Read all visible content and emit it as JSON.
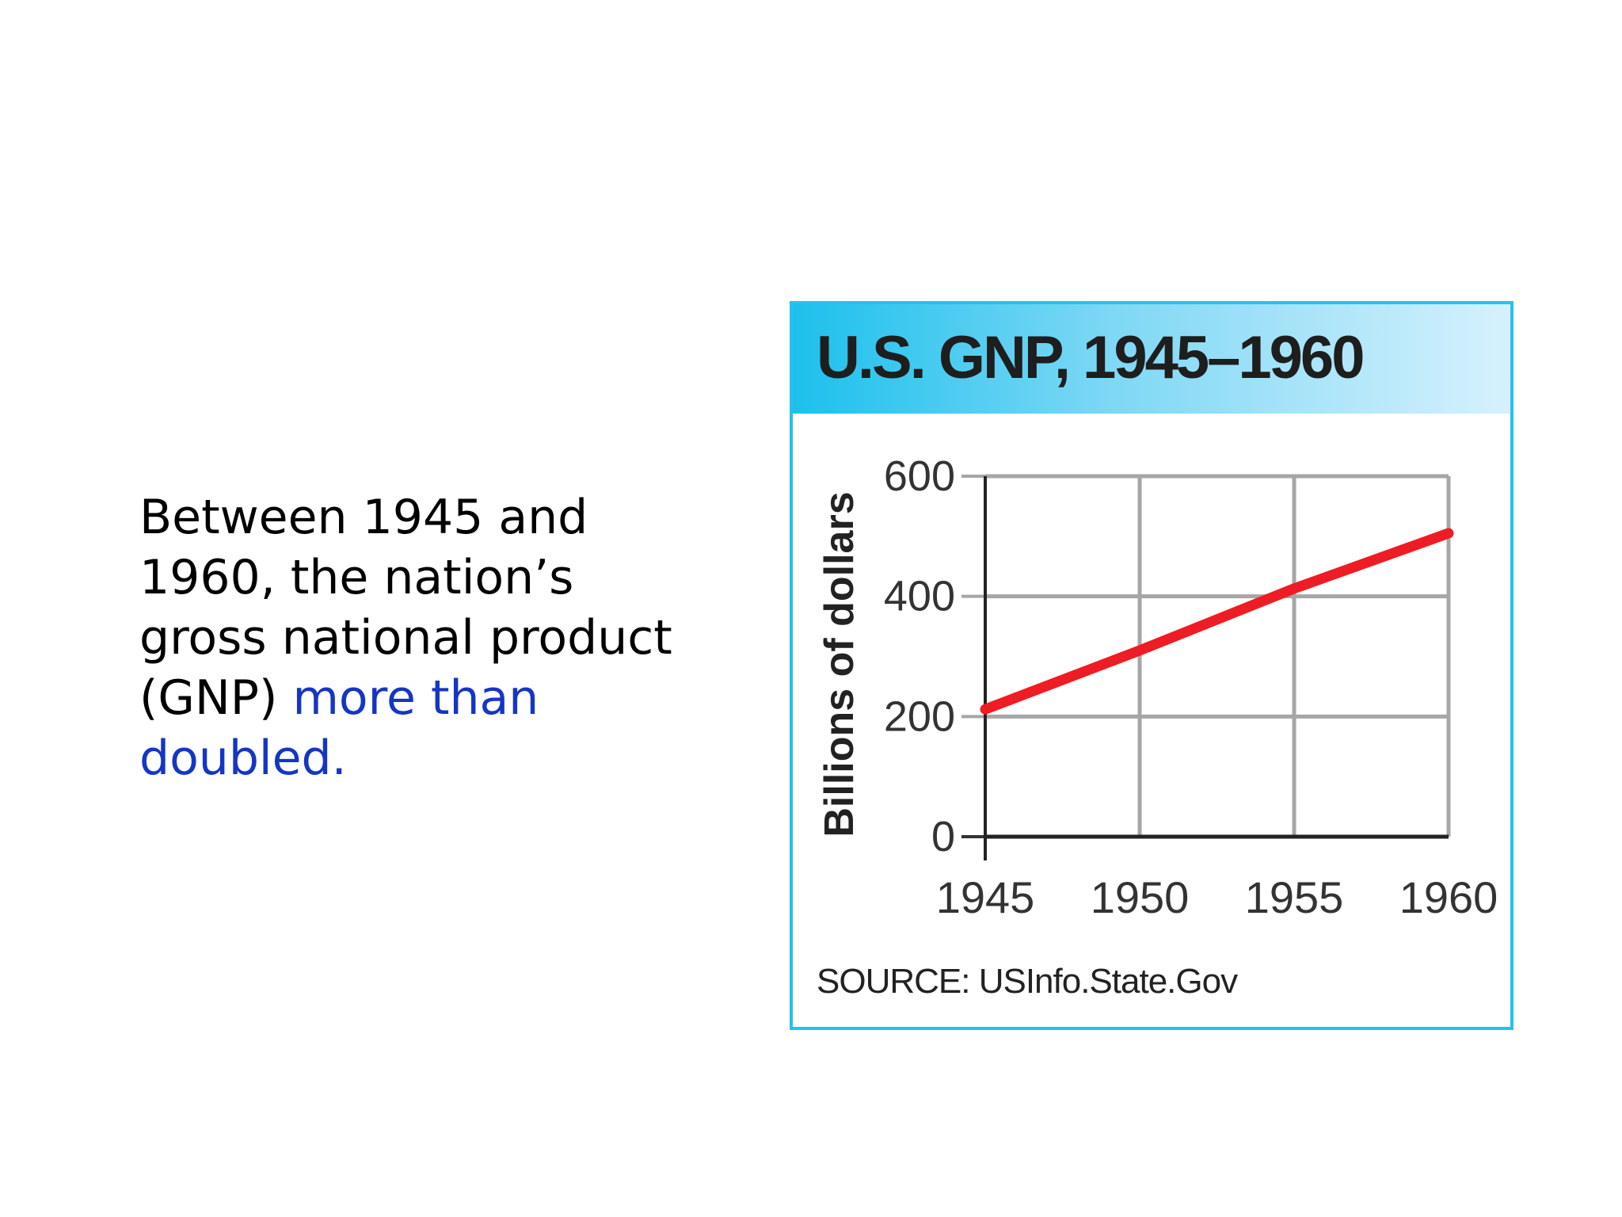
{
  "slide": {
    "text_plain": "Between 1945 and 1960, the nation’s gross national product (GNP)",
    "text_highlight": "more than doubled."
  },
  "colors": {
    "highlight_text": "#1536c4",
    "header_gradient_start": "#1cc0ec",
    "frame": "#22c3ee",
    "line": "#ee1c24",
    "grid": "#a6a6a6"
  },
  "chart_data": {
    "type": "line",
    "title": "U.S. GNP, 1945–1960",
    "ylabel": "Billions of dollars",
    "xlabel": "",
    "x": [
      1945,
      1950,
      1955,
      1960
    ],
    "series": [
      {
        "values": [
          212,
          310,
          413,
          505
        ]
      }
    ],
    "x_ticks": [
      "1945",
      "1950",
      "1955",
      "1960"
    ],
    "y_ticks": [
      "0",
      "200",
      "400",
      "600"
    ],
    "xlim": [
      1945,
      1960
    ],
    "ylim": [
      0,
      600
    ],
    "grid": true,
    "source": "SOURCE: USInfo.State.Gov"
  }
}
